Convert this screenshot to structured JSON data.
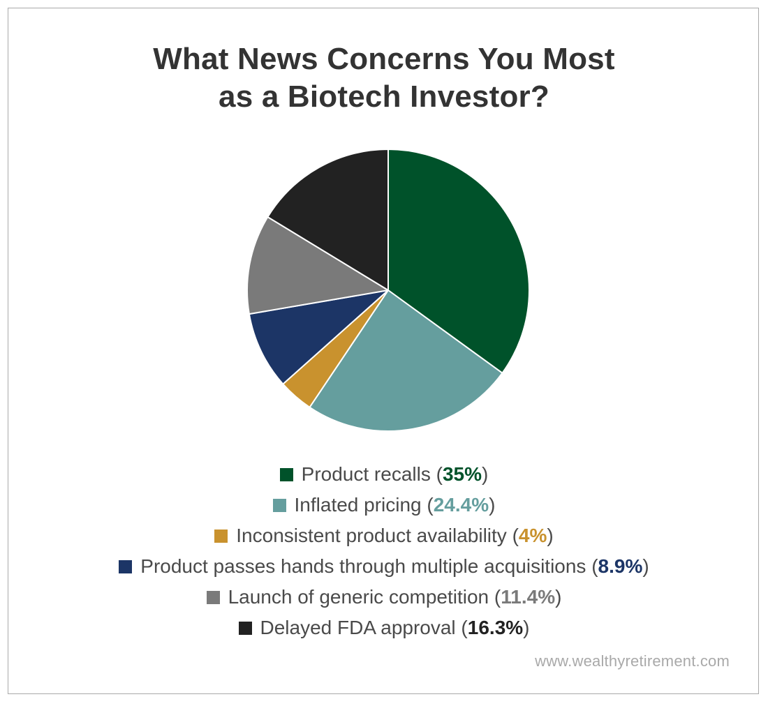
{
  "chart_data": {
    "type": "pie",
    "title_lines": [
      "What News Concerns You Most",
      "as a Biotech Investor?"
    ],
    "slices": [
      {
        "label": "Product recalls",
        "value": 35,
        "display": "35%",
        "color": "#00522A"
      },
      {
        "label": "Inflated pricing",
        "value": 24.4,
        "display": "24.4%",
        "color": "#659E9E"
      },
      {
        "label": "Inconsistent product availability",
        "value": 4,
        "display": "4%",
        "color": "#C9922E"
      },
      {
        "label": "Product passes hands through multiple acquisitions",
        "value": 8.9,
        "display": "8.9%",
        "color": "#1C3566"
      },
      {
        "label": "Launch of generic competition",
        "value": 11.4,
        "display": "11.4%",
        "color": "#7A7A7A"
      },
      {
        "label": "Delayed FDA approval",
        "value": 16.3,
        "display": "16.3%",
        "color": "#222222"
      }
    ],
    "start_angle": "12 o'clock",
    "direction": "clockwise",
    "legend_position": "bottom"
  },
  "source": "www.wealthyretirement.com"
}
